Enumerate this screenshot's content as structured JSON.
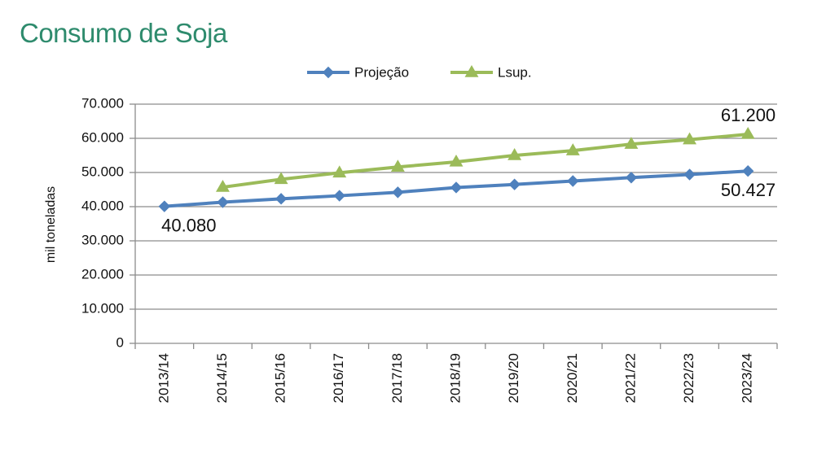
{
  "title": "Consumo de Soja",
  "chart_data": {
    "type": "line",
    "ylabel": "mil toneladas",
    "ylim": [
      0,
      70000
    ],
    "y_ticks": [
      "0",
      "10.000",
      "20.000",
      "30.000",
      "40.000",
      "50.000",
      "60.000",
      "70.000"
    ],
    "grid": true,
    "legend_position": "top",
    "categories": [
      "2013/14",
      "2014/15",
      "2015/16",
      "2016/17",
      "2017/18",
      "2018/19",
      "2019/20",
      "2020/21",
      "2021/22",
      "2022/23",
      "2023/24"
    ],
    "series": [
      {
        "name": "Projeção",
        "color": "#4f81bd",
        "marker": "diamond",
        "values": [
          40080,
          41300,
          42300,
          43200,
          44200,
          45600,
          46500,
          47500,
          48500,
          49400,
          50427
        ]
      },
      {
        "name": "Lsup.",
        "color": "#9bbb59",
        "marker": "triangle",
        "values": [
          null,
          45700,
          48000,
          49900,
          51600,
          53100,
          55000,
          56400,
          58300,
          59600,
          61200
        ]
      }
    ],
    "annotations": [
      {
        "text": "40.080",
        "series": 0,
        "index": 0,
        "anchor": "below"
      },
      {
        "text": "50.427",
        "series": 0,
        "index": 10,
        "anchor": "below"
      },
      {
        "text": "61.200",
        "series": 1,
        "index": 10,
        "anchor": "above"
      }
    ]
  }
}
